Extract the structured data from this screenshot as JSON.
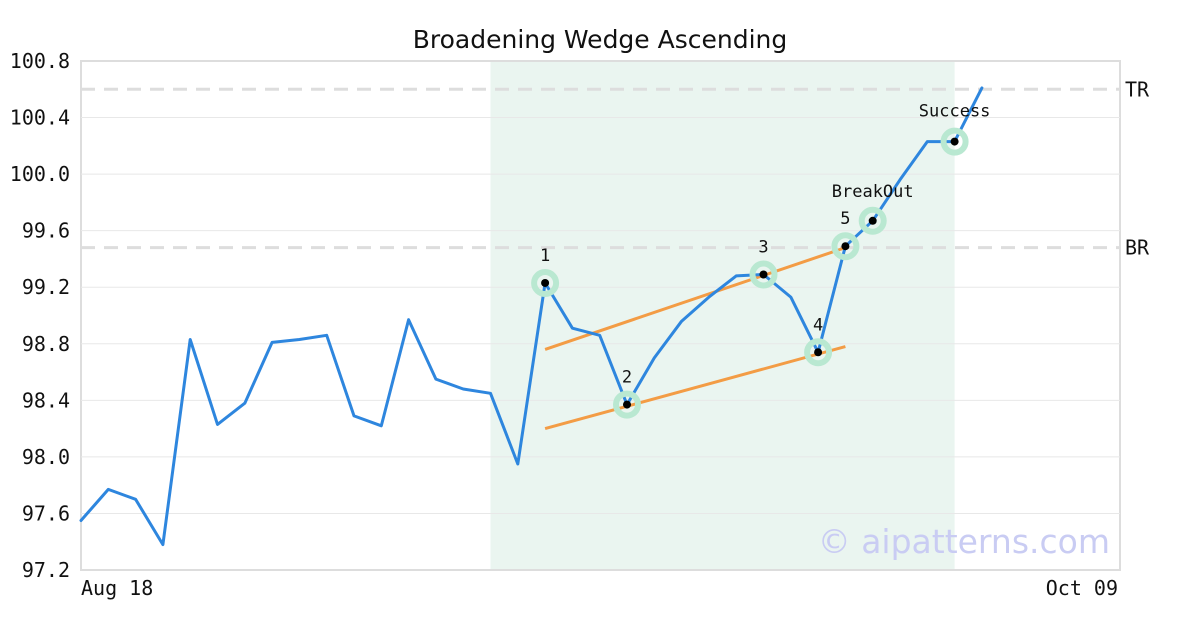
{
  "chart_data": {
    "type": "line",
    "title": "Broadening Wedge Ascending",
    "xlabel": "",
    "ylabel": "",
    "ylim": [
      97.2,
      100.8
    ],
    "yticks": [
      "97.2",
      "97.6",
      "98.0",
      "98.4",
      "98.8",
      "99.2",
      "99.6",
      "100.0",
      "100.4",
      "100.8"
    ],
    "xtick_labels": [
      "Aug 18",
      "Oct 09"
    ],
    "grid": true,
    "colors": {
      "price": "#2e86de",
      "trend": "#f39c45",
      "highlight": "#eaf5f0",
      "marker_ring": "#b9e8d1",
      "level_line": "#dddddd"
    },
    "series": [
      {
        "values": [
          97.55,
          97.77,
          97.7,
          97.38,
          98.83,
          98.23,
          98.38,
          98.81,
          98.83,
          98.86,
          98.29,
          98.22,
          98.97,
          98.55,
          98.48,
          98.45,
          97.95,
          99.23,
          98.91,
          98.86,
          98.37,
          98.7,
          98.96,
          99.13,
          99.28,
          99.29,
          99.13,
          98.74,
          99.49,
          99.67,
          99.96,
          100.23,
          100.23,
          100.61
        ]
      }
    ],
    "highlight_range": [
      15,
      32
    ],
    "levels": [
      {
        "label": "TR",
        "value": 100.6
      },
      {
        "label": "BR",
        "value": 99.48
      }
    ],
    "trendlines": [
      {
        "from": [
          17,
          98.76
        ],
        "to": [
          28,
          99.48
        ]
      },
      {
        "from": [
          17,
          98.2
        ],
        "to": [
          28,
          98.78
        ]
      }
    ],
    "markers": [
      {
        "x": 17,
        "y": 99.23,
        "label": "1"
      },
      {
        "x": 20,
        "y": 98.37,
        "label": "2"
      },
      {
        "x": 25,
        "y": 99.29,
        "label": "3"
      },
      {
        "x": 27,
        "y": 98.74,
        "label": "4"
      },
      {
        "x": 28,
        "y": 99.49,
        "label": "5"
      },
      {
        "x": 29,
        "y": 99.67,
        "label": "BreakOut"
      },
      {
        "x": 32,
        "y": 100.23,
        "label": "Success"
      }
    ],
    "watermark": "© aipatterns.com"
  }
}
